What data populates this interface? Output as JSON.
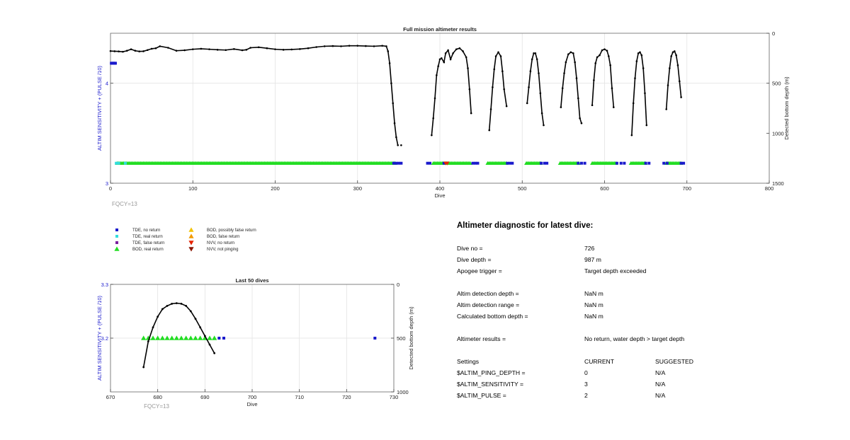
{
  "colors": {
    "tde_no_return": "#1a1acc",
    "tde_real_return": "#33dddd",
    "tde_false_return": "#7a1f9e",
    "bod_real_return": "#22dd22",
    "bod_possibly_false": "#f2c200",
    "bod_false_return": "#f29a00",
    "nvv_no_return": "#e62200",
    "nvv_not_pinging": "#8b1500",
    "left_axis": "#1a1acc",
    "grid": "#e3e3e3"
  },
  "chart_data": [
    {
      "type": "scatter",
      "title": "Full mission altimeter results",
      "xlabel": "Dive",
      "ylabel_left": "ALTIM SENSITIVITY + (PULSE /10)",
      "ylabel_right": "Detected bottom depth (m)",
      "xlim": [
        0,
        800
      ],
      "ylim_left": [
        3,
        4.5
      ],
      "ylim_right_reversed": [
        0,
        1500
      ],
      "x_ticks": [
        "0",
        "100",
        "200",
        "300",
        "400",
        "500",
        "600",
        "700",
        "800"
      ],
      "y_left_ticks": [
        "3",
        "4"
      ],
      "y_right_ticks": [
        "0",
        "500",
        "1000",
        "1500"
      ],
      "grid": true,
      "footer": "FQCY=13",
      "series": [
        {
          "name": "TDE, no return",
          "sample_x": [
            1,
            2,
            3,
            4,
            5,
            6,
            344,
            347,
            350,
            353,
            385,
            388,
            405,
            440,
            443,
            446,
            482,
            485,
            488,
            523,
            527,
            530,
            568,
            572,
            576,
            615,
            620,
            624,
            650,
            654,
            672,
            676,
            693,
            696
          ],
          "sample_y_left": [
            4.2,
            4.2,
            4.2,
            4.2,
            4.2,
            4.2,
            3.2,
            3.2,
            3.2,
            3.2,
            3.2,
            3.2,
            3.2,
            3.2,
            3.2,
            3.2,
            3.2,
            3.2,
            3.2,
            3.2,
            3.2,
            3.2,
            3.2,
            3.2,
            3.2,
            3.2,
            3.2,
            3.2,
            3.2,
            3.2,
            3.2,
            3.2,
            3.2,
            3.2
          ]
        },
        {
          "name": "TDE, real return",
          "sample_x": [
            7,
            10,
            18
          ],
          "sample_y_left": [
            3.2,
            3.2,
            3.2
          ]
        },
        {
          "name": "BOD, real return",
          "segments_x": [
            [
              8,
              346
            ],
            [
              392,
              438
            ],
            [
              458,
              482
            ],
            [
              505,
              524
            ],
            [
              546,
              570
            ],
            [
              585,
              615
            ],
            [
              632,
              650
            ],
            [
              675,
              693
            ]
          ],
          "y_left": 3.2
        },
        {
          "name": "NVV, no return",
          "sample_x": [
            407,
            409
          ],
          "sample_y_left": [
            3.2,
            3.2
          ]
        },
        {
          "name": "Detected bottom depth",
          "axis": "right",
          "segments": [
            {
              "x": [
                0,
                5,
                10,
                15,
                20,
                25,
                30,
                35,
                40,
                45,
                50,
                55,
                60,
                70,
                80,
                90,
                100,
                110,
                120,
                130,
                140,
                150,
                160,
                165,
                170,
                180,
                190,
                200,
                210,
                220,
                230,
                240,
                250,
                260,
                270,
                280,
                290,
                300,
                310,
                320,
                330,
                335,
                337,
                339,
                341,
                343,
                345,
                347,
                349
              ],
              "y": [
                178,
                180,
                182,
                185,
                175,
                160,
                175,
                182,
                180,
                168,
                155,
                150,
                130,
                145,
                175,
                170,
                160,
                155,
                160,
                165,
                168,
                158,
                170,
                165,
                145,
                140,
                150,
                160,
                165,
                162,
                158,
                150,
                138,
                130,
                128,
                130,
                125,
                125,
                128,
                130,
                125,
                130,
                180,
                300,
                500,
                700,
                900,
                1040,
                1120
              ]
            },
            {
              "x": [
                353
              ],
              "y": [
                1120
              ]
            },
            {
              "x": [
                390,
                392,
                394,
                396,
                398,
                400,
                402,
                405,
                407,
                410,
                413,
                416,
                420,
                424,
                428,
                432,
                434,
                436,
                438
              ],
              "y": [
                1020,
                850,
                650,
                420,
                330,
                260,
                250,
                290,
                200,
                170,
                260,
                200,
                160,
                150,
                180,
                240,
                350,
                560,
                800
              ]
            },
            {
              "x": [
                460,
                462,
                464,
                466,
                468,
                471,
                474,
                476,
                478,
                481
              ],
              "y": [
                970,
                760,
                540,
                360,
                230,
                190,
                230,
                380,
                560,
                730
              ]
            },
            {
              "x": [
                506,
                508,
                510,
                512,
                514,
                516,
                518,
                520,
                522,
                524,
                526
              ],
              "y": [
                700,
                540,
                380,
                260,
                200,
                200,
                260,
                400,
                600,
                800,
                920
              ]
            },
            {
              "x": [
                547,
                549,
                551,
                553,
                556,
                559,
                562,
                564,
                566,
                568,
                570,
                572
              ],
              "y": [
                740,
                550,
                400,
                290,
                210,
                190,
                200,
                290,
                450,
                650,
                850,
                900
              ]
            },
            {
              "x": [
                585,
                587,
                589,
                591,
                594,
                597,
                600,
                603,
                605,
                607,
                609,
                611
              ],
              "y": [
                720,
                470,
                300,
                240,
                220,
                170,
                160,
                175,
                230,
                320,
                550,
                740
              ]
            },
            {
              "x": [
                633,
                635,
                637,
                639,
                641,
                643,
                645,
                647,
                649,
                651
              ],
              "y": [
                1020,
                700,
                450,
                280,
                200,
                190,
                220,
                350,
                600,
                920
              ]
            },
            {
              "x": [
                675,
                677,
                679,
                681,
                683,
                685,
                687,
                689,
                691,
                693
              ],
              "y": [
                760,
                520,
                350,
                230,
                190,
                180,
                220,
                320,
                480,
                640
              ]
            }
          ]
        }
      ]
    },
    {
      "type": "scatter",
      "title": "Last 50 dives",
      "xlabel": "Dive",
      "ylabel_left": "ALTIM SENSITIVITY + (PULSE /10)",
      "ylabel_right": "Detected bottom depth (m)",
      "xlim": [
        670,
        730
      ],
      "ylim_left": [
        3.1,
        3.3
      ],
      "ylim_right_reversed": [
        0,
        1000
      ],
      "x_ticks": [
        "670",
        "680",
        "690",
        "700",
        "710",
        "720",
        "730"
      ],
      "y_left_ticks": [
        "3.2",
        "3.3"
      ],
      "y_right_ticks": [
        "0",
        "500",
        "1000"
      ],
      "grid": true,
      "footer": "FQCY=13",
      "series": [
        {
          "name": "BOD, real return",
          "x": [
            677,
            678,
            679,
            680,
            681,
            682,
            683,
            684,
            685,
            686,
            687,
            688,
            689,
            690,
            691,
            692
          ],
          "y_left": [
            3.2,
            3.2,
            3.2,
            3.2,
            3.2,
            3.2,
            3.2,
            3.2,
            3.2,
            3.2,
            3.2,
            3.2,
            3.2,
            3.2,
            3.2,
            3.2
          ]
        },
        {
          "name": "TDE, no return",
          "x": [
            693,
            694,
            726
          ],
          "y_left": [
            3.2,
            3.2,
            3.2
          ]
        },
        {
          "name": "Detected bottom depth",
          "axis": "right",
          "x": [
            677,
            678,
            679,
            680,
            681,
            682,
            683,
            684,
            685,
            686,
            687,
            688,
            689,
            690,
            691,
            692
          ],
          "y": [
            770,
            530,
            400,
            300,
            230,
            200,
            180,
            175,
            180,
            200,
            250,
            320,
            400,
            480,
            560,
            640
          ]
        }
      ]
    }
  ],
  "legend": {
    "items": [
      {
        "label": "TDE, no return",
        "marker": "square",
        "color": "#1a1acc"
      },
      {
        "label": "TDE, real return",
        "marker": "square",
        "color": "#33dddd"
      },
      {
        "label": "TDE, false return",
        "marker": "square",
        "color": "#7a1f9e"
      },
      {
        "label": "BOD, real return",
        "marker": "triangle-up",
        "color": "#22dd22"
      },
      {
        "label": "BOD, possibly false return",
        "marker": "triangle-up",
        "color": "#f2c200"
      },
      {
        "label": "BOD, false return",
        "marker": "triangle-up",
        "color": "#f29a00"
      },
      {
        "label": "NVV, no return",
        "marker": "triangle-down",
        "color": "#e62200"
      },
      {
        "label": "NVV, not pinging",
        "marker": "triangle-down",
        "color": "#8b1500"
      }
    ]
  },
  "diagnostic": {
    "title": "Altimeter diagnostic for latest dive:",
    "dive_no_label": "Dive no =",
    "dive_no_value": "726",
    "dive_depth_label": "Dive depth =",
    "dive_depth_value": "987 m",
    "apogee_label": "Apogee trigger =",
    "apogee_value": "Target depth exceeded",
    "detect_depth_label": "Altim detection depth =",
    "detect_depth_value": "NaN m",
    "detect_range_label": "Altim detection range =",
    "detect_range_value": "NaN m",
    "bottom_depth_label": "Calculated bottom depth =",
    "bottom_depth_value": "NaN m",
    "results_label": "Altimeter results =",
    "results_value": "No return, water depth > target depth",
    "settings_label": "Settings",
    "current_label": "CURRENT",
    "suggested_label": "SUGGESTED",
    "ping_depth_label": "$ALTIM_PING_DEPTH =",
    "ping_depth_current": "0",
    "ping_depth_suggested": "N/A",
    "sensitivity_label": "$ALTIM_SENSITIVITY =",
    "sensitivity_current": "3",
    "sensitivity_suggested": "N/A",
    "pulse_label": "$ALTIM_PULSE =",
    "pulse_current": "2",
    "pulse_suggested": "N/A"
  }
}
